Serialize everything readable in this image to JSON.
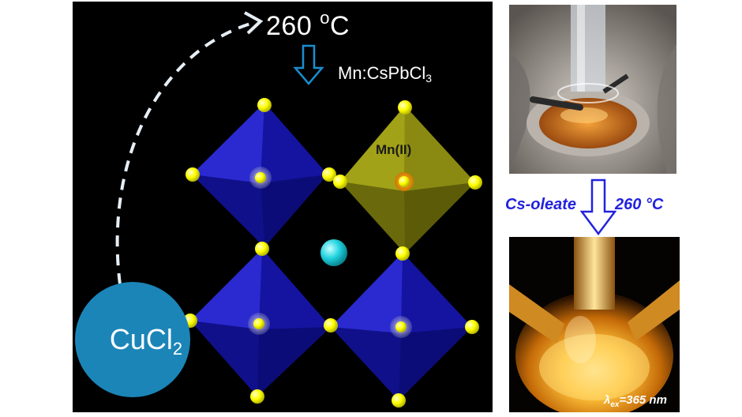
{
  "scheme": {
    "temperature_label": "260 °C",
    "temperature_value": "260 ",
    "temperature_degree": "o",
    "temperature_unit": "C",
    "product": {
      "prefix": "Mn:CsPbCl",
      "subscript": "3"
    },
    "dopant_label": "Mn(II)",
    "precursor": {
      "prefix": "CuCl",
      "subscript": "2"
    }
  },
  "photos": {
    "reagent_label": "Cs-oleate",
    "reaction_temperature": "260 °C",
    "excitation": {
      "symbol": "λ",
      "subscript": "ex",
      "value": "=365 nm"
    }
  },
  "colors": {
    "octahedron_blue": "#1e1ec8",
    "octahedron_yellow": "#8a8a0c",
    "chloride_atom": "#ffff00",
    "cesium_atom": "#22d3e0",
    "precursor_circle": "#1b85b8",
    "label_blue": "#2222dd"
  }
}
